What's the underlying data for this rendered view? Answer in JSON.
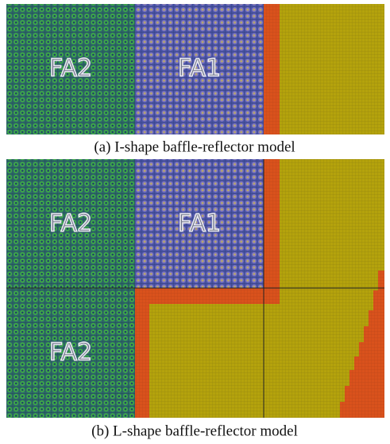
{
  "figure": {
    "panels": [
      {
        "labels": [
          "FA2",
          "FA1"
        ],
        "caption": "(a) I-shape baffle-reflector model"
      },
      {
        "labels": [
          "FA2",
          "FA1",
          "FA2"
        ],
        "caption": "(b) L-shape baffle-reflector model"
      }
    ]
  }
}
